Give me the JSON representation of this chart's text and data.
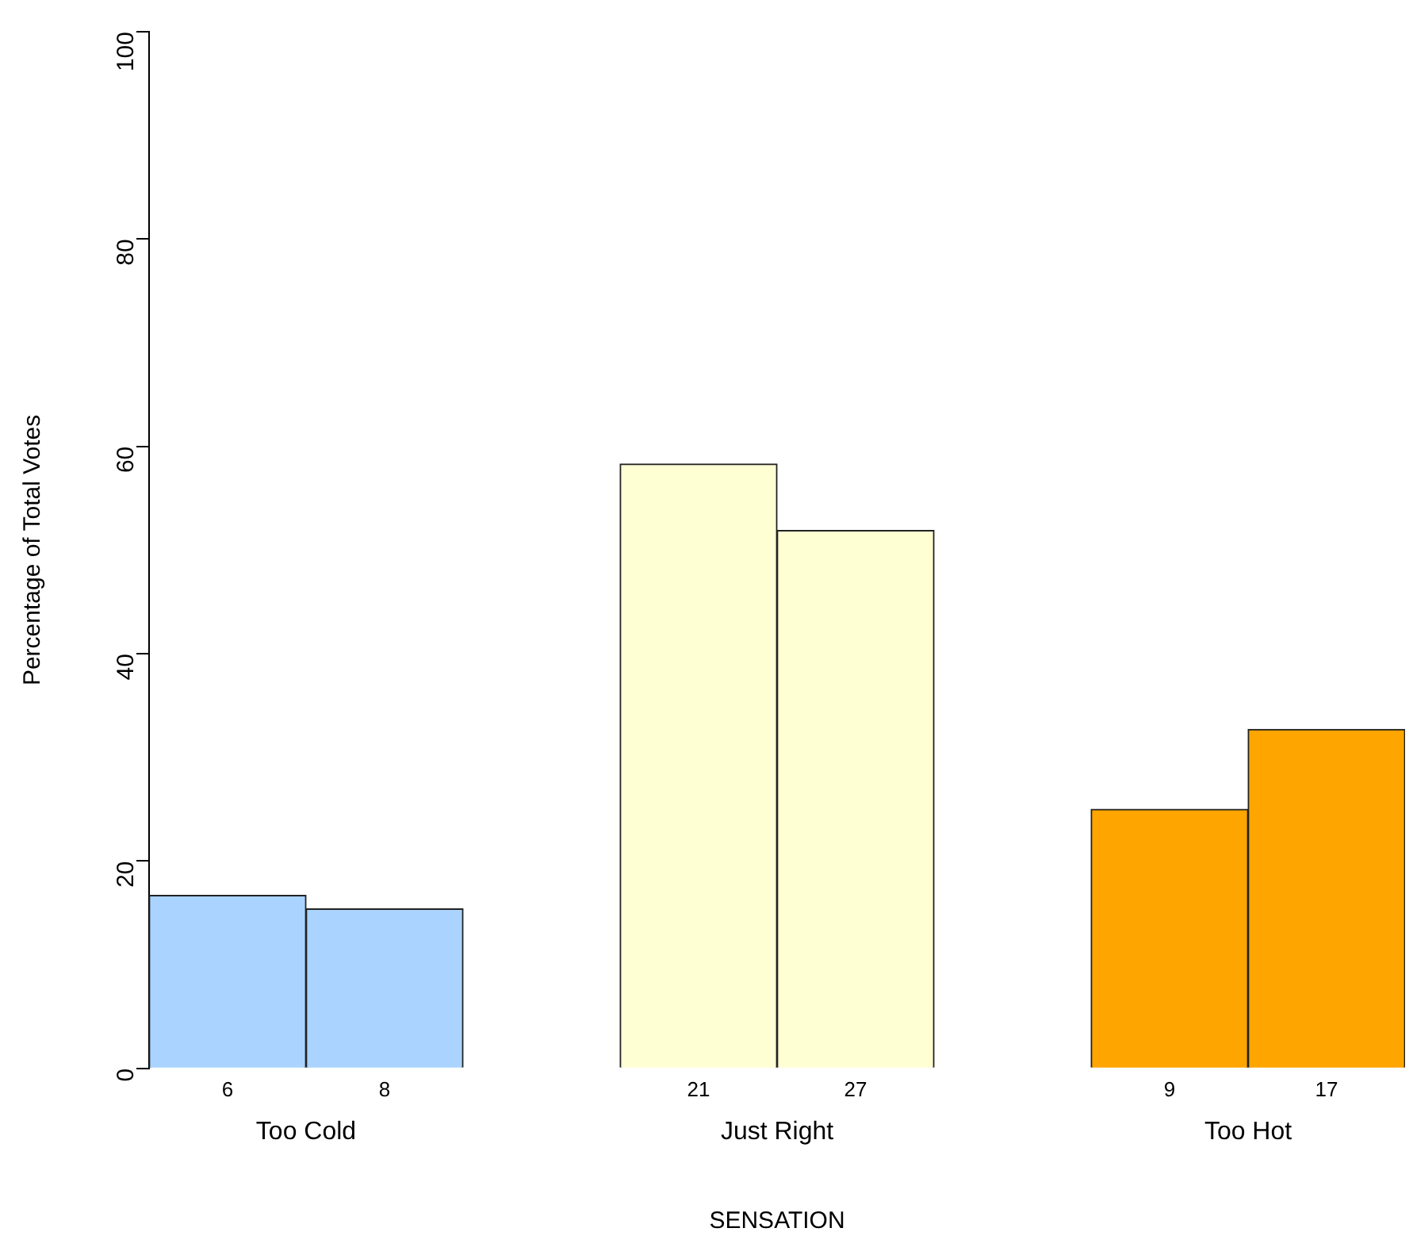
{
  "chart_data": {
    "type": "bar",
    "xlabel": "SENSATION",
    "ylabel": "Percentage of Total Votes",
    "categories": [
      "6",
      "8",
      null,
      "21",
      "27",
      null,
      "9",
      "17"
    ],
    "values": [
      16.7,
      15.4,
      null,
      58.3,
      51.9,
      null,
      25,
      32.7
    ],
    "colors": [
      "#aad4ff",
      "#aad4ff",
      null,
      "#ffffd4",
      "#ffffd4",
      null,
      "#ffa500",
      "#ffa500"
    ],
    "ylim": [
      0,
      100
    ],
    "yticks": [
      0,
      20,
      40,
      60,
      80,
      100
    ],
    "grid": false,
    "legend": false,
    "annotations": [
      "Too Cold",
      "Just Right",
      "Too Hot"
    ]
  }
}
